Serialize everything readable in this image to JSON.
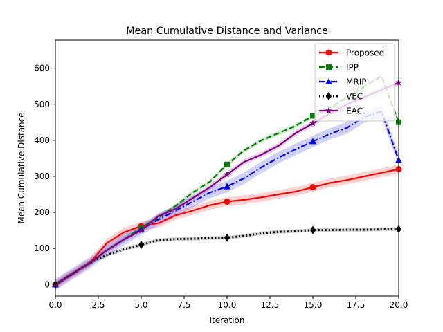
{
  "chart_data": {
    "type": "line",
    "title": "Mean Cumulative Distance and Variance",
    "xlabel": "Iteration",
    "ylabel": "Mean Cumulative Distance",
    "xlim": [
      0,
      20
    ],
    "ylim": [
      -32,
      678
    ],
    "xticks": [
      0,
      2.5,
      5,
      7.5,
      10,
      12.5,
      15,
      17.5,
      20
    ],
    "xtick_labels": [
      "0.0",
      "2.5",
      "5.0",
      "7.5",
      "10.0",
      "12.5",
      "15.0",
      "17.5",
      "20.0"
    ],
    "yticks": [
      0,
      100,
      200,
      300,
      400,
      500,
      600
    ],
    "ytick_labels": [
      "0",
      "100",
      "200",
      "300",
      "400",
      "500",
      "600"
    ],
    "grid": false,
    "legend_position": "top-right",
    "x": [
      0,
      1,
      2,
      3,
      4,
      5,
      6,
      7,
      8,
      9,
      10,
      11,
      12,
      13,
      14,
      15,
      16,
      17,
      18,
      19,
      20
    ],
    "series": [
      {
        "name": "Proposed",
        "color": "#ff0000",
        "linestyle": "solid",
        "marker": "circle",
        "values": [
          0,
          30,
          60,
          115,
          145,
          162,
          170,
          192,
          205,
          220,
          230,
          235,
          242,
          250,
          258,
          270,
          282,
          290,
          300,
          310,
          320
        ],
        "band": 12
      },
      {
        "name": "IPP",
        "color": "#008000",
        "linestyle": "dashed",
        "marker": "square",
        "values": [
          0,
          30,
          60,
          95,
          125,
          158,
          185,
          218,
          255,
          285,
          333,
          372,
          400,
          420,
          440,
          468,
          490,
          520,
          550,
          578,
          450
        ],
        "band": 6
      },
      {
        "name": "MRIP",
        "color": "#0000ff",
        "linestyle": "dashdot",
        "marker": "triangle",
        "values": [
          0,
          30,
          60,
          95,
          125,
          153,
          180,
          205,
          230,
          255,
          272,
          295,
          325,
          352,
          375,
          397,
          418,
          435,
          465,
          480,
          345
        ],
        "band": 16
      },
      {
        "name": "VEC",
        "color": "#000000",
        "linestyle": "dotted",
        "marker": "diamond",
        "values": [
          0,
          30,
          60,
          82,
          98,
          110,
          123,
          126,
          127,
          129,
          130,
          135,
          142,
          146,
          148,
          151,
          151,
          152,
          152,
          153,
          154
        ],
        "band": 5
      },
      {
        "name": "EAC",
        "color": "#800080",
        "linestyle": "solid",
        "marker": "star",
        "values": [
          0,
          30,
          60,
          95,
          125,
          150,
          190,
          210,
          240,
          270,
          305,
          340,
          360,
          385,
          420,
          447,
          475,
          500,
          520,
          540,
          560
        ],
        "band": 8
      }
    ]
  }
}
